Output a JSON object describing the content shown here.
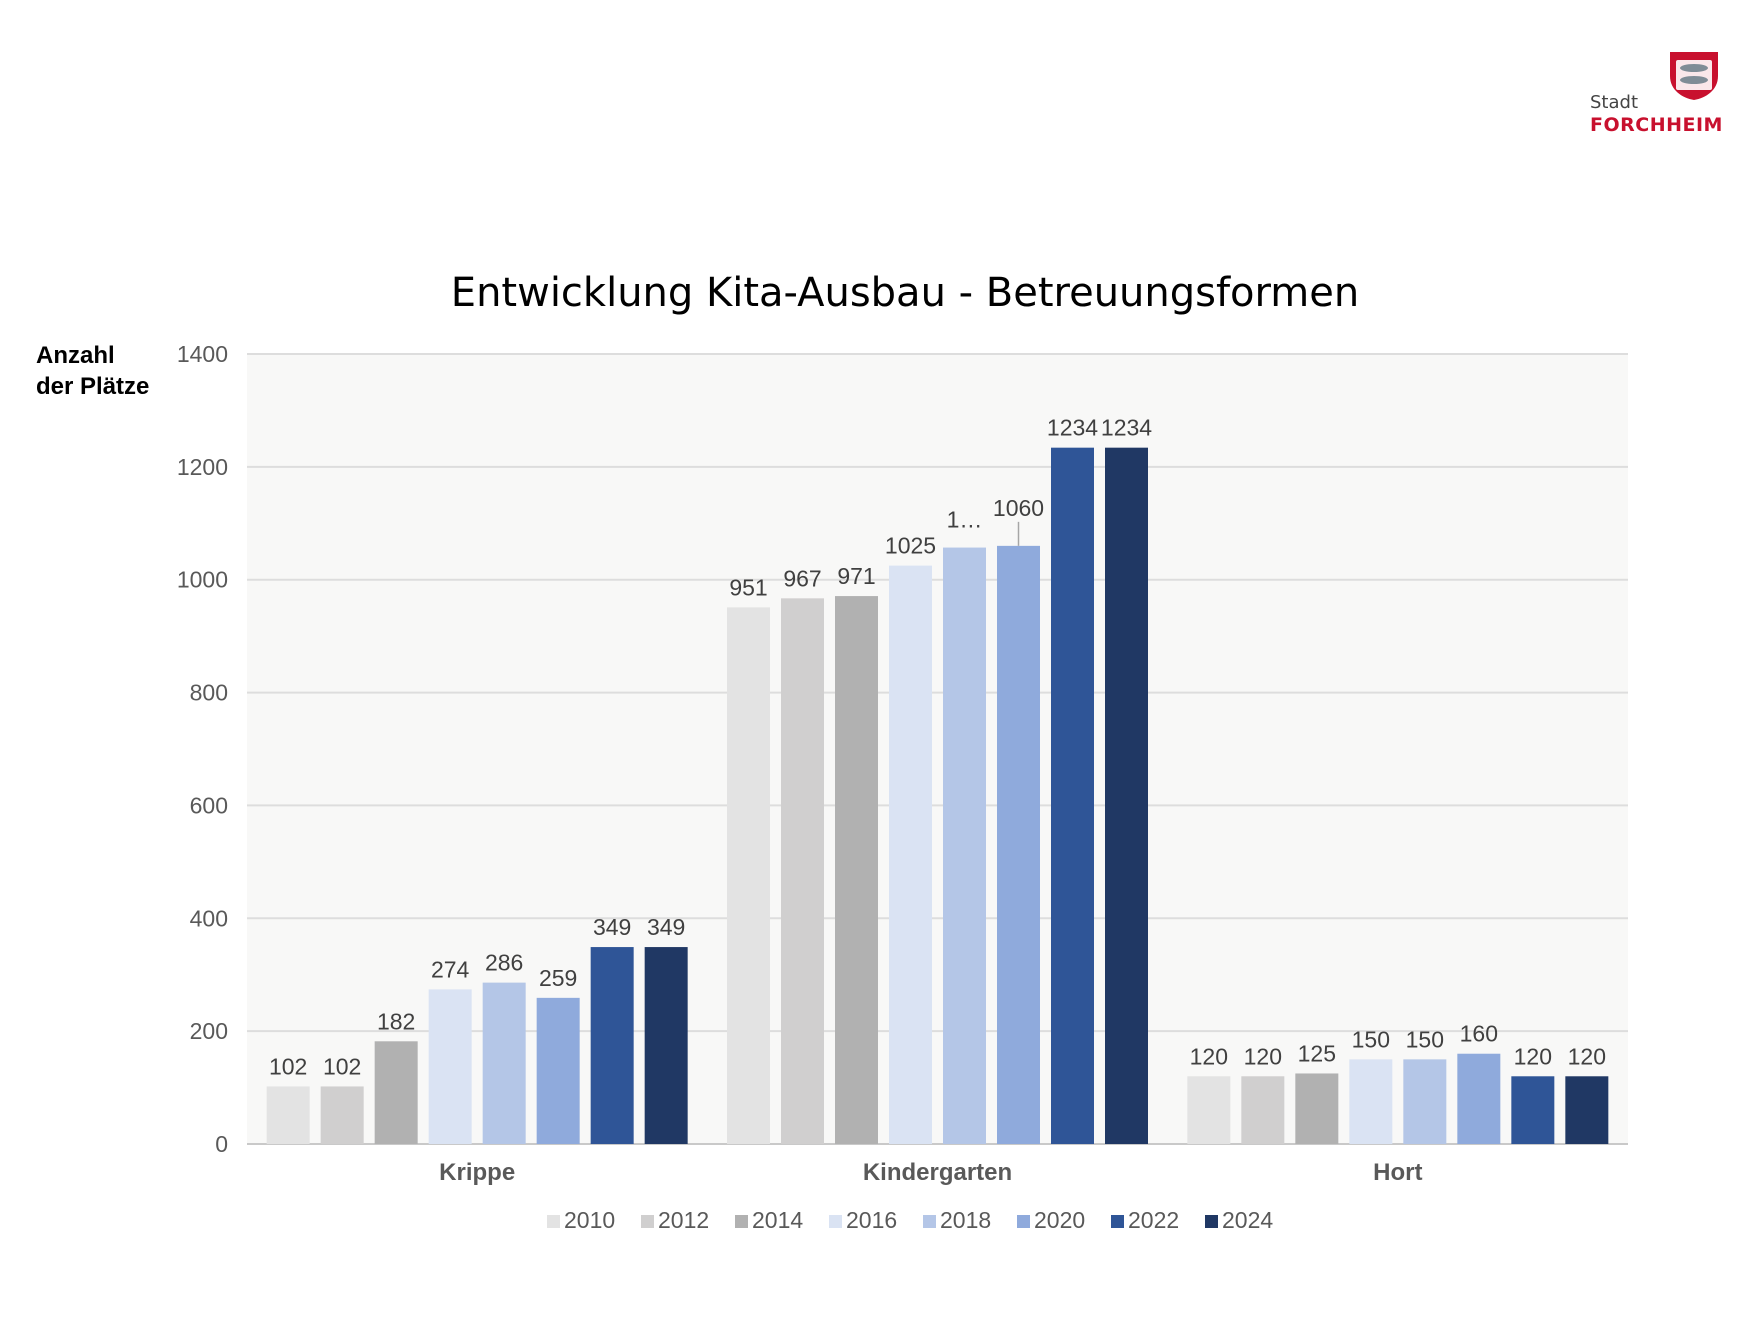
{
  "logo": {
    "line1": "Stadt",
    "line2": "FORCHHEIM",
    "brand_color": "#c8102e"
  },
  "chart_data": {
    "type": "bar",
    "title": "Entwicklung Kita-Ausbau - Betreuungsformen",
    "ylabel": "Anzahl der Plätze",
    "xlabel": "",
    "ylim": [
      0,
      1400
    ],
    "yticks": [
      0,
      200,
      400,
      600,
      800,
      1000,
      1200,
      1400
    ],
    "grid": true,
    "legend_position": "bottom",
    "categories": [
      "Krippe",
      "Kindergarten",
      "Hort"
    ],
    "series": [
      {
        "name": "2010",
        "color": "#e3e3e3",
        "values": [
          102,
          951,
          120
        ],
        "labels": [
          "102",
          "951",
          "120"
        ]
      },
      {
        "name": "2012",
        "color": "#d0cfcf",
        "values": [
          102,
          967,
          120
        ],
        "labels": [
          "102",
          "967",
          "120"
        ]
      },
      {
        "name": "2014",
        "color": "#b1b1b1",
        "values": [
          182,
          971,
          125
        ],
        "labels": [
          "182",
          "971",
          "125"
        ]
      },
      {
        "name": "2016",
        "color": "#dae3f3",
        "values": [
          274,
          1025,
          150
        ],
        "labels": [
          "274",
          "1025",
          "150"
        ]
      },
      {
        "name": "2018",
        "color": "#b4c6e7",
        "values": [
          286,
          1057,
          150
        ],
        "labels": [
          "286",
          "1…",
          "150"
        ]
      },
      {
        "name": "2020",
        "color": "#8faadc",
        "values": [
          259,
          1060,
          160
        ],
        "labels": [
          "259",
          "1060",
          "160"
        ]
      },
      {
        "name": "2022",
        "color": "#2f5597",
        "values": [
          349,
          1234,
          120
        ],
        "labels": [
          "349",
          "1234",
          "120"
        ]
      },
      {
        "name": "2024",
        "color": "#203864",
        "values": [
          349,
          1234,
          120
        ],
        "labels": [
          "349",
          "1234",
          "120"
        ]
      }
    ]
  }
}
